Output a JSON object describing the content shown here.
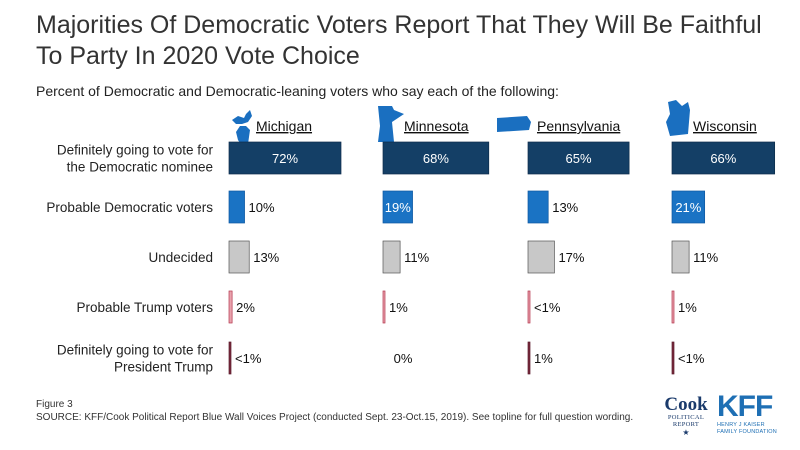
{
  "title": "Majorities Of Democratic Voters Report That They Will Be Faithful To Party In 2020 Vote Choice",
  "subtitle": "Percent of Democratic and Democratic-leaning voters who say each of the following:",
  "footer": {
    "figure": "Figure 3",
    "source": "SOURCE: KFF/Cook Political Report Blue Wall Voices Project (conducted Sept. 23-Oct.15, 2019). See topline for full question wording."
  },
  "logos": {
    "cook_line1": "Cook",
    "cook_line2": "POLITICAL",
    "cook_line3": "REPORT",
    "kff_main": "KFF",
    "kff_line1": "HENRY J KAISER",
    "kff_line2": "FAMILY FOUNDATION"
  },
  "chart_data": {
    "type": "bar",
    "orientation": "horizontal",
    "categories": [
      [
        "Definitely going to vote for",
        "the Democratic nominee"
      ],
      [
        "Probable Democratic voters"
      ],
      [
        "Undecided"
      ],
      [
        "Probable Trump voters"
      ],
      [
        "Definitely going to vote for",
        "President Trump"
      ]
    ],
    "category_colors": [
      "#143f66",
      "#1a73c4",
      "#c8c8c8",
      "#e8a3ad",
      "#7a2a3c"
    ],
    "category_strokes": [
      "#0d2c4a",
      "#0f58a0",
      "#555555",
      "#b5364e",
      "#5a1a2a"
    ],
    "series": [
      {
        "name": "Michigan",
        "values": [
          72,
          10,
          13,
          2,
          0.5
        ],
        "labels": [
          "72%",
          "10%",
          "13%",
          "2%",
          "<1%"
        ]
      },
      {
        "name": "Minnesota",
        "values": [
          68,
          19,
          11,
          1,
          0
        ],
        "labels": [
          "68%",
          "19%",
          "11%",
          "1%",
          "0%"
        ]
      },
      {
        "name": "Pennsylvania",
        "values": [
          65,
          13,
          17,
          0.5,
          1
        ],
        "labels": [
          "65%",
          "13%",
          "17%",
          "<1%",
          "1%"
        ]
      },
      {
        "name": "Wisconsin",
        "values": [
          66,
          21,
          11,
          1,
          0.5
        ],
        "labels": [
          "66%",
          "21%",
          "11%",
          "1%",
          "<1%"
        ]
      }
    ],
    "xlim": [
      0,
      72
    ],
    "grid": false,
    "legend": "none"
  }
}
